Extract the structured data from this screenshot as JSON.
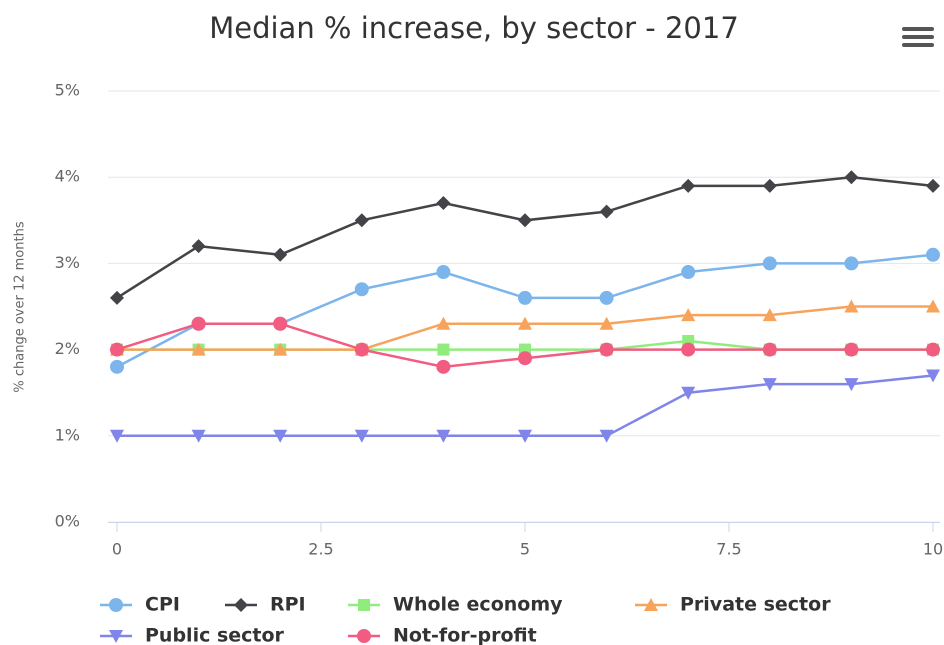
{
  "chart_data": {
    "type": "line",
    "title": "Median % increase, by sector - 2017",
    "y_label": "% change over 12 months",
    "x": [
      0,
      1,
      2,
      3,
      4,
      5,
      6,
      7,
      8,
      9,
      10
    ],
    "xlim": [
      0,
      10
    ],
    "xticks": [
      0,
      2.5,
      5,
      7.5,
      10
    ],
    "ylim": [
      0,
      5
    ],
    "yticks": [
      {
        "value": 0,
        "label": "0%"
      },
      {
        "value": 1,
        "label": "1%"
      },
      {
        "value": 2,
        "label": "2%"
      },
      {
        "value": 3,
        "label": "3%"
      },
      {
        "value": 4,
        "label": "4%"
      },
      {
        "value": 5,
        "label": "5%"
      }
    ],
    "grid": true,
    "legend": "bottom",
    "series": [
      {
        "name": "CPI",
        "color": "#7cb5ec",
        "marker": "circle",
        "values": [
          1.8,
          2.3,
          2.3,
          2.7,
          2.9,
          2.6,
          2.6,
          2.9,
          3.0,
          3.0,
          3.1
        ]
      },
      {
        "name": "RPI",
        "color": "#434348",
        "marker": "diamond",
        "values": [
          2.6,
          3.2,
          3.1,
          3.5,
          3.7,
          3.5,
          3.6,
          3.9,
          3.9,
          4.0,
          3.9
        ]
      },
      {
        "name": "Whole economy",
        "color": "#90ed7d",
        "marker": "square",
        "values": [
          2.0,
          2.0,
          2.0,
          2.0,
          2.0,
          2.0,
          2.0,
          2.1,
          2.0,
          2.0,
          2.0
        ]
      },
      {
        "name": "Private sector",
        "color": "#f7a35c",
        "marker": "triangle",
        "values": [
          2.0,
          2.0,
          2.0,
          2.0,
          2.3,
          2.3,
          2.3,
          2.4,
          2.4,
          2.5,
          2.5
        ]
      },
      {
        "name": "Public sector",
        "color": "#8085e9",
        "marker": "triangle-down",
        "values": [
          1.0,
          1.0,
          1.0,
          1.0,
          1.0,
          1.0,
          1.0,
          1.5,
          1.6,
          1.6,
          1.7
        ]
      },
      {
        "name": "Not-for-profit",
        "color": "#f15c80",
        "marker": "circle",
        "values": [
          2.0,
          2.3,
          2.3,
          2.0,
          1.8,
          1.9,
          2.0,
          2.0,
          2.0,
          2.0,
          2.0
        ]
      }
    ]
  }
}
